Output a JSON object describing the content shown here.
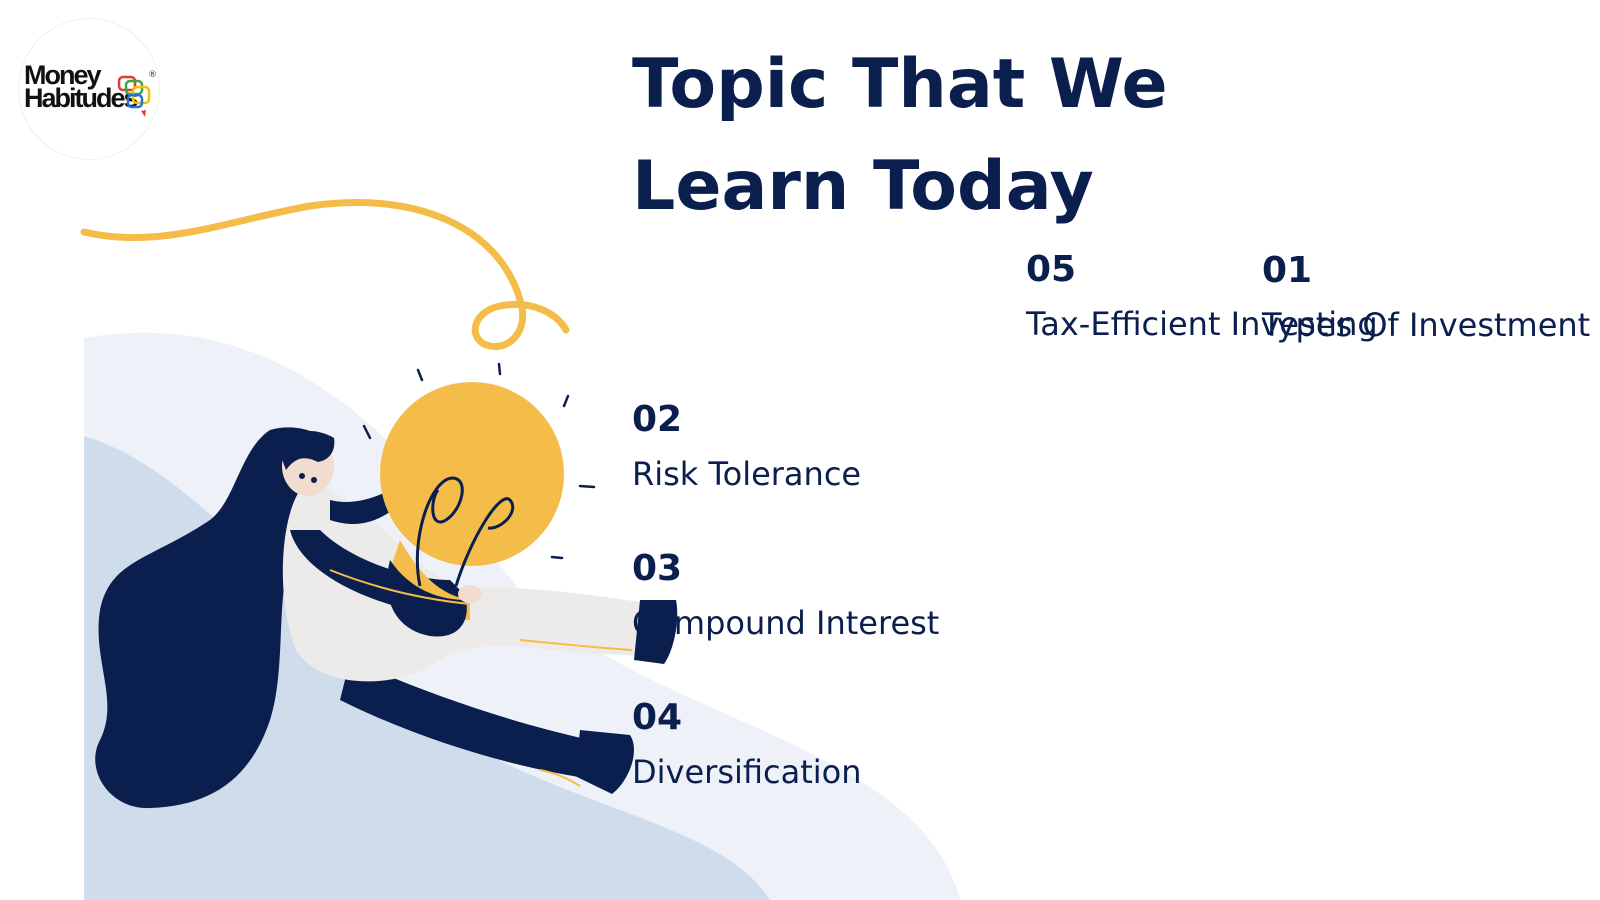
{
  "logo": {
    "line1": "Money",
    "line2": "Habitudes",
    "registered": "®"
  },
  "slide": {
    "title": "Topic That We Learn Today"
  },
  "topics": [
    {
      "number": "01",
      "label": "Types Of Investment"
    },
    {
      "number": "02",
      "label": "Risk Tolerance"
    },
    {
      "number": "03",
      "label": "Compound Interest"
    },
    {
      "number": "04",
      "label": "Diversification"
    },
    {
      "number": "05",
      "label": "Tax-Efficient Investing"
    }
  ],
  "colors": {
    "navy": "#0b1f4f",
    "bulb_yellow": "#f4bd4a",
    "hill_light": "#eef2f8",
    "hill_mid": "#cfdcec",
    "skin_light": "#ecebea"
  },
  "icons": {
    "illustration": "woman-holding-lightbulb-illustration",
    "logo": "money-habitudes-logo"
  }
}
